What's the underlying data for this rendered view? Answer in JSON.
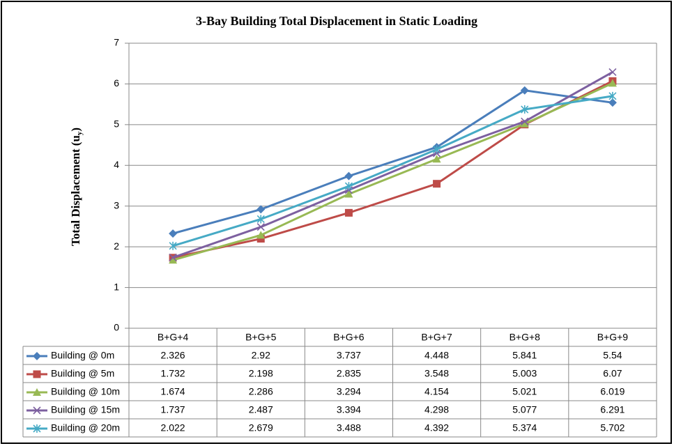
{
  "chart_data": {
    "type": "line",
    "title": "3-Bay Building  Total Displacement in Static Loading",
    "y_label": {
      "text": "Total Displacement   (u",
      "subscript": "y",
      "suffix": ")"
    },
    "categories": [
      "B+G+4",
      "B+G+5",
      "B+G+6",
      "B+G+7",
      "B+G+8",
      "B+G+9"
    ],
    "series": [
      {
        "name": "Building @ 0m",
        "color": "#4a7ebb",
        "marker": "diamond",
        "values": [
          2.326,
          2.92,
          3.737,
          4.448,
          5.841,
          5.54
        ]
      },
      {
        "name": "Building @ 5m",
        "color": "#be4b48",
        "marker": "square",
        "values": [
          1.732,
          2.198,
          2.835,
          3.548,
          5.003,
          6.07
        ]
      },
      {
        "name": "Building @ 10m",
        "color": "#98b954",
        "marker": "triangle",
        "values": [
          1.674,
          2.286,
          3.294,
          4.154,
          5.021,
          6.019
        ]
      },
      {
        "name": "Building @ 15m",
        "color": "#7d60a0",
        "marker": "x",
        "values": [
          1.737,
          2.487,
          3.394,
          4.298,
          5.077,
          6.291
        ]
      },
      {
        "name": "Building @ 20m",
        "color": "#46aac5",
        "marker": "star",
        "values": [
          2.022,
          2.679,
          3.488,
          4.392,
          5.374,
          5.702
        ]
      }
    ],
    "ylim": [
      0,
      7
    ],
    "yticks": [
      0,
      1,
      2,
      3,
      4,
      5,
      6,
      7
    ],
    "grid": true,
    "data_table": true
  }
}
